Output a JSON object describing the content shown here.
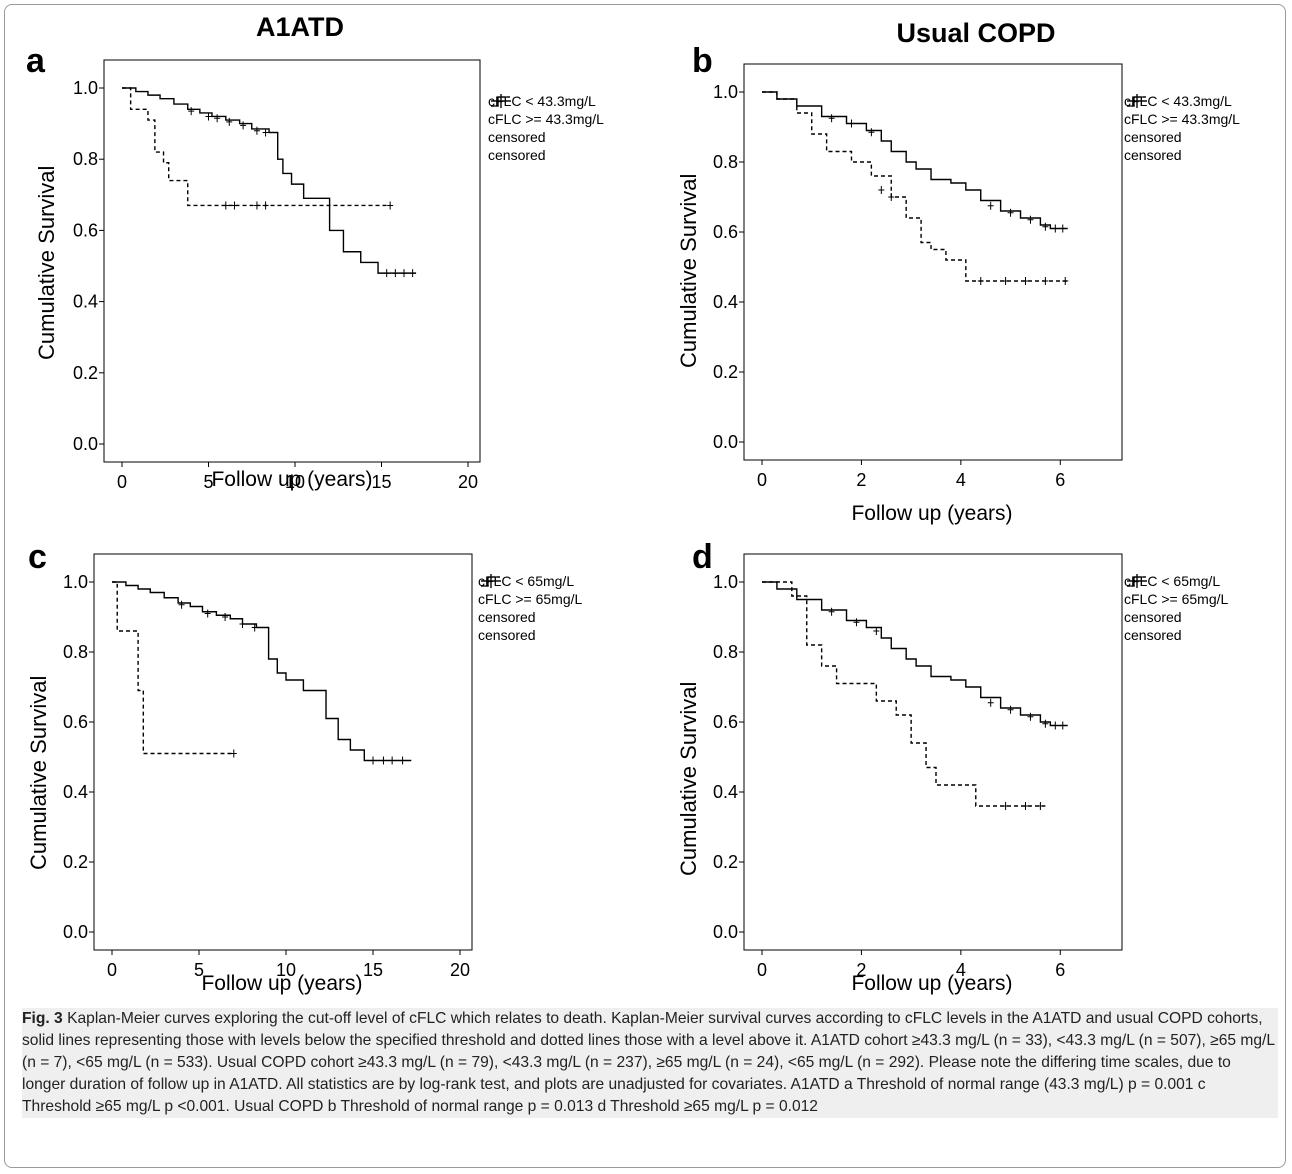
{
  "figure": {
    "caption_fig": "Fig. 3",
    "caption_text": "Kaplan-Meier curves exploring the cut-off level of cFLC which relates to death. Kaplan-Meier survival curves according to cFLC levels in the A1ATD and usual COPD cohorts, solid lines representing those with levels below the specified threshold and dotted lines those with a level above it. A1ATD cohort ≥43.3 mg/L (n = 33), <43.3 mg/L (n = 507), ≥65 mg/L (n = 7), <65 mg/L (n = 533). Usual COPD cohort ≥43.3 mg/L (n = 79), <43.3 mg/L (n = 237), ≥65 mg/L (n = 24), <65 mg/L (n = 292). Please note the differing time scales, due to longer duration of follow up in A1ATD. All statistics are by log-rank test, and plots are unadjusted for covariates. A1ATD a Threshold of normal range (43.3 mg/L) p = 0.001 c Threshold ≥65 mg/L p <0.001. Usual COPD b Threshold of normal range p = 0.013 d Threshold ≥65 mg/L p = 0.012"
  },
  "panels": [
    {
      "label": "a",
      "heading": "A1ATD"
    },
    {
      "label": "b",
      "heading": "Usual COPD"
    },
    {
      "label": "c",
      "heading": ""
    },
    {
      "label": "d",
      "heading": ""
    }
  ],
  "colors": {
    "line": "#000000",
    "frame": "#9a9a9a",
    "caption_bg": "#efefef"
  },
  "chart_data": [
    {
      "type": "line",
      "panel": "a",
      "xlabel": "Follow up (years)",
      "ylabel": "Cumulative Survival",
      "xlim": [
        0,
        20
      ],
      "ylim": [
        0.0,
        1.0
      ],
      "xticks": [
        0,
        5,
        10,
        15,
        20
      ],
      "yticks": [
        0.0,
        0.2,
        0.4,
        0.6,
        0.8,
        1.0
      ],
      "legend": [
        "cFLC < 43.3mg/L",
        "cFLC >= 43.3mg/L",
        "censored",
        "censored"
      ],
      "series": [
        {
          "name": "cFLC < 43.3mg/L",
          "style": "solid",
          "steps": [
            [
              0,
              1.0
            ],
            [
              0.8,
              0.99
            ],
            [
              1.5,
              0.98
            ],
            [
              2.2,
              0.97
            ],
            [
              3.0,
              0.955
            ],
            [
              3.8,
              0.94
            ],
            [
              4.5,
              0.93
            ],
            [
              5.2,
              0.92
            ],
            [
              6.0,
              0.91
            ],
            [
              6.8,
              0.9
            ],
            [
              7.5,
              0.885
            ],
            [
              8.5,
              0.875
            ],
            [
              9.0,
              0.8
            ],
            [
              9.3,
              0.76
            ],
            [
              9.8,
              0.73
            ],
            [
              10.5,
              0.69
            ],
            [
              12.0,
              0.6
            ],
            [
              12.8,
              0.54
            ],
            [
              13.8,
              0.51
            ],
            [
              14.8,
              0.48
            ],
            [
              17.0,
              0.48
            ]
          ],
          "censored": [
            [
              4.0,
              0.935
            ],
            [
              5.0,
              0.92
            ],
            [
              5.5,
              0.915
            ],
            [
              6.2,
              0.905
            ],
            [
              7.0,
              0.895
            ],
            [
              7.8,
              0.88
            ],
            [
              8.3,
              0.875
            ],
            [
              15.3,
              0.48
            ],
            [
              15.8,
              0.48
            ],
            [
              16.3,
              0.48
            ],
            [
              16.8,
              0.48
            ]
          ]
        },
        {
          "name": "cFLC >= 43.3mg/L",
          "style": "dashed",
          "steps": [
            [
              0,
              1.0
            ],
            [
              0.5,
              0.94
            ],
            [
              1.5,
              0.91
            ],
            [
              1.9,
              0.82
            ],
            [
              2.4,
              0.79
            ],
            [
              2.7,
              0.74
            ],
            [
              3.8,
              0.67
            ],
            [
              15.5,
              0.67
            ]
          ],
          "censored": [
            [
              6.0,
              0.67
            ],
            [
              6.5,
              0.67
            ],
            [
              7.8,
              0.67
            ],
            [
              8.3,
              0.67
            ],
            [
              15.5,
              0.67
            ]
          ]
        }
      ]
    },
    {
      "type": "line",
      "panel": "b",
      "xlabel": "Follow up (years)",
      "ylabel": "Cumulative Survival",
      "xlim": [
        0,
        7
      ],
      "ylim": [
        0.0,
        1.0
      ],
      "xticks": [
        0,
        2,
        4,
        6
      ],
      "yticks": [
        0.0,
        0.2,
        0.4,
        0.6,
        0.8,
        1.0
      ],
      "legend": [
        "cFLC < 43.3mg/L",
        "cFLC >= 43.3mg/L",
        "censored",
        "censored"
      ],
      "series": [
        {
          "name": "cFLC < 43.3mg/L",
          "style": "solid",
          "steps": [
            [
              0,
              1.0
            ],
            [
              0.3,
              0.98
            ],
            [
              0.7,
              0.96
            ],
            [
              1.2,
              0.93
            ],
            [
              1.7,
              0.91
            ],
            [
              2.1,
              0.89
            ],
            [
              2.4,
              0.86
            ],
            [
              2.6,
              0.83
            ],
            [
              2.9,
              0.8
            ],
            [
              3.1,
              0.78
            ],
            [
              3.4,
              0.75
            ],
            [
              3.8,
              0.74
            ],
            [
              4.1,
              0.72
            ],
            [
              4.4,
              0.69
            ],
            [
              4.8,
              0.66
            ],
            [
              5.2,
              0.64
            ],
            [
              5.6,
              0.62
            ],
            [
              5.8,
              0.61
            ],
            [
              6.15,
              0.61
            ]
          ],
          "censored": [
            [
              1.4,
              0.925
            ],
            [
              1.8,
              0.91
            ],
            [
              2.2,
              0.885
            ],
            [
              4.6,
              0.675
            ],
            [
              5.0,
              0.655
            ],
            [
              5.4,
              0.635
            ],
            [
              5.7,
              0.615
            ],
            [
              5.9,
              0.61
            ],
            [
              6.05,
              0.61
            ]
          ]
        },
        {
          "name": "cFLC >= 43.3mg/L",
          "style": "dashed",
          "steps": [
            [
              0,
              1.0
            ],
            [
              0.3,
              0.98
            ],
            [
              0.7,
              0.94
            ],
            [
              1.0,
              0.88
            ],
            [
              1.3,
              0.83
            ],
            [
              1.8,
              0.8
            ],
            [
              2.2,
              0.76
            ],
            [
              2.6,
              0.7
            ],
            [
              2.9,
              0.64
            ],
            [
              3.2,
              0.57
            ],
            [
              3.4,
              0.55
            ],
            [
              3.7,
              0.52
            ],
            [
              4.1,
              0.46
            ],
            [
              6.15,
              0.46
            ]
          ],
          "censored": [
            [
              2.4,
              0.72
            ],
            [
              2.6,
              0.7
            ],
            [
              4.4,
              0.46
            ],
            [
              4.9,
              0.46
            ],
            [
              5.3,
              0.46
            ],
            [
              5.7,
              0.46
            ],
            [
              6.1,
              0.46
            ]
          ]
        }
      ]
    },
    {
      "type": "line",
      "panel": "c",
      "xlabel": "Follow up (years)",
      "ylabel": "Cumulative Survival",
      "xlim": [
        0,
        20
      ],
      "ylim": [
        0.0,
        1.0
      ],
      "xticks": [
        0,
        5,
        10,
        15,
        20
      ],
      "yticks": [
        0.0,
        0.2,
        0.4,
        0.6,
        0.8,
        1.0
      ],
      "legend": [
        "cFLC < 65mg/L",
        "cFLC >= 65mg/L",
        "censored",
        "censored"
      ],
      "series": [
        {
          "name": "cFLC < 65mg/L",
          "style": "solid",
          "steps": [
            [
              0,
              1.0
            ],
            [
              0.8,
              0.99
            ],
            [
              1.5,
              0.98
            ],
            [
              2.2,
              0.97
            ],
            [
              3.0,
              0.955
            ],
            [
              3.8,
              0.94
            ],
            [
              4.5,
              0.93
            ],
            [
              5.2,
              0.915
            ],
            [
              6.0,
              0.905
            ],
            [
              6.8,
              0.895
            ],
            [
              7.5,
              0.88
            ],
            [
              8.3,
              0.87
            ],
            [
              9.0,
              0.78
            ],
            [
              9.5,
              0.74
            ],
            [
              10.0,
              0.72
            ],
            [
              11.0,
              0.69
            ],
            [
              12.3,
              0.61
            ],
            [
              13.0,
              0.55
            ],
            [
              13.7,
              0.52
            ],
            [
              14.5,
              0.49
            ],
            [
              17.2,
              0.49
            ]
          ],
          "censored": [
            [
              4.0,
              0.935
            ],
            [
              5.5,
              0.91
            ],
            [
              6.5,
              0.9
            ],
            [
              7.5,
              0.88
            ],
            [
              8.2,
              0.87
            ],
            [
              15.0,
              0.49
            ],
            [
              15.6,
              0.49
            ],
            [
              16.1,
              0.49
            ],
            [
              16.7,
              0.49
            ]
          ]
        },
        {
          "name": "cFLC >= 65mg/L",
          "style": "dashed",
          "steps": [
            [
              0,
              1.0
            ],
            [
              0.3,
              0.86
            ],
            [
              1.5,
              0.69
            ],
            [
              1.8,
              0.51
            ],
            [
              7.0,
              0.51
            ]
          ],
          "censored": [
            [
              7.0,
              0.51
            ]
          ]
        }
      ]
    },
    {
      "type": "line",
      "panel": "d",
      "xlabel": "Follow up (years)",
      "ylabel": "Cumulative Survival",
      "xlim": [
        0,
        7
      ],
      "ylim": [
        0.0,
        1.0
      ],
      "xticks": [
        0,
        2,
        4,
        6
      ],
      "yticks": [
        0.0,
        0.2,
        0.4,
        0.6,
        0.8,
        1.0
      ],
      "legend": [
        "cFLC < 65mg/L",
        "cFLC >= 65mg/L",
        "censored",
        "censored"
      ],
      "series": [
        {
          "name": "cFLC < 65mg/L",
          "style": "solid",
          "steps": [
            [
              0,
              1.0
            ],
            [
              0.3,
              0.98
            ],
            [
              0.7,
              0.95
            ],
            [
              1.2,
              0.92
            ],
            [
              1.7,
              0.89
            ],
            [
              2.1,
              0.87
            ],
            [
              2.4,
              0.84
            ],
            [
              2.6,
              0.81
            ],
            [
              2.9,
              0.78
            ],
            [
              3.1,
              0.76
            ],
            [
              3.4,
              0.73
            ],
            [
              3.8,
              0.72
            ],
            [
              4.1,
              0.7
            ],
            [
              4.4,
              0.67
            ],
            [
              4.8,
              0.64
            ],
            [
              5.2,
              0.62
            ],
            [
              5.6,
              0.6
            ],
            [
              5.8,
              0.59
            ],
            [
              6.15,
              0.59
            ]
          ],
          "censored": [
            [
              1.4,
              0.915
            ],
            [
              1.9,
              0.885
            ],
            [
              2.3,
              0.86
            ],
            [
              4.6,
              0.655
            ],
            [
              5.0,
              0.635
            ],
            [
              5.4,
              0.615
            ],
            [
              5.7,
              0.595
            ],
            [
              5.9,
              0.59
            ],
            [
              6.05,
              0.59
            ]
          ]
        },
        {
          "name": "cFLC >= 65mg/L",
          "style": "dashed",
          "steps": [
            [
              0,
              1.0
            ],
            [
              0.6,
              0.96
            ],
            [
              0.9,
              0.82
            ],
            [
              1.2,
              0.76
            ],
            [
              1.5,
              0.71
            ],
            [
              2.3,
              0.66
            ],
            [
              2.7,
              0.62
            ],
            [
              3.0,
              0.54
            ],
            [
              3.3,
              0.47
            ],
            [
              3.5,
              0.42
            ],
            [
              4.3,
              0.36
            ],
            [
              5.7,
              0.36
            ]
          ],
          "censored": [
            [
              4.9,
              0.36
            ],
            [
              5.3,
              0.36
            ],
            [
              5.6,
              0.36
            ]
          ]
        }
      ]
    }
  ]
}
